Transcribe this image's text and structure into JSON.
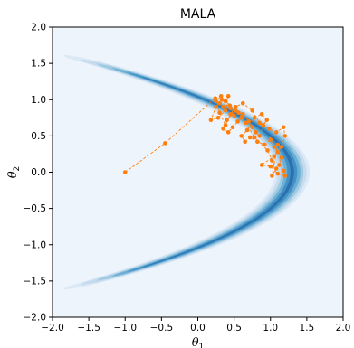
{
  "chart_data": {
    "type": "scatter",
    "title": "MALA",
    "xlabel": {
      "symbol": "θ",
      "sub": "1"
    },
    "ylabel": {
      "symbol": "θ",
      "sub": "2"
    },
    "xlim": [
      -2.0,
      2.0
    ],
    "ylim": [
      -2.0,
      2.0
    ],
    "xticks": [
      -2.0,
      -1.5,
      -1.0,
      -0.5,
      0.0,
      0.5,
      1.0,
      1.5,
      2.0
    ],
    "yticks": [
      -2.0,
      -1.5,
      -1.0,
      -0.5,
      0.0,
      0.5,
      1.0,
      1.5,
      2.0
    ],
    "xtick_labels": [
      "−2.0",
      "−1.5",
      "−1.0",
      "−0.5",
      "0.0",
      "0.5",
      "1.0",
      "1.5",
      "2.0"
    ],
    "ytick_labels": [
      "−2.0",
      "−1.5",
      "−1.0",
      "−0.5",
      "0.0",
      "0.5",
      "1.0",
      "1.5",
      "2.0"
    ],
    "grid": false,
    "background": "#eef4fb",
    "density_contour": {
      "shape": "banana",
      "curve": "theta1 = 1.3 - 1.2 * theta2^2",
      "colormap": "Blues",
      "levels": [
        0.05,
        0.15,
        0.3,
        0.5,
        0.7,
        0.9
      ],
      "colors": [
        "#dbe9f6",
        "#c6dbef",
        "#9ecae1",
        "#6baed6",
        "#4292c6",
        "#2c70b0"
      ]
    },
    "series": [
      {
        "marker_color": "#ff7f0e",
        "line_style": "dashed",
        "points": [
          [
            -1.0,
            0.0
          ],
          [
            -0.45,
            0.4
          ],
          [
            0.24,
            1.02
          ],
          [
            0.3,
            0.95
          ],
          [
            0.35,
            0.9
          ],
          [
            0.42,
            1.05
          ],
          [
            0.38,
            0.85
          ],
          [
            0.28,
            0.75
          ],
          [
            0.18,
            0.72
          ],
          [
            0.25,
            0.9
          ],
          [
            0.33,
            1.0
          ],
          [
            0.45,
            0.88
          ],
          [
            0.5,
            0.78
          ],
          [
            0.55,
            0.7
          ],
          [
            0.6,
            0.75
          ],
          [
            0.48,
            0.62
          ],
          [
            0.42,
            0.55
          ],
          [
            0.35,
            0.6
          ],
          [
            0.4,
            0.72
          ],
          [
            0.52,
            0.85
          ],
          [
            0.62,
            0.8
          ],
          [
            0.7,
            0.7
          ],
          [
            0.75,
            0.62
          ],
          [
            0.8,
            0.55
          ],
          [
            0.85,
            0.5
          ],
          [
            0.9,
            0.65
          ],
          [
            0.95,
            0.72
          ],
          [
            0.88,
            0.8
          ],
          [
            0.78,
            0.75
          ],
          [
            0.68,
            0.58
          ],
          [
            0.6,
            0.5
          ],
          [
            0.65,
            0.42
          ],
          [
            0.72,
            0.48
          ],
          [
            0.82,
            0.42
          ],
          [
            0.92,
            0.38
          ],
          [
            1.0,
            0.45
          ],
          [
            1.05,
            0.35
          ],
          [
            1.1,
            0.28
          ],
          [
            1.15,
            0.2
          ],
          [
            1.12,
            0.1
          ],
          [
            1.18,
            0.02
          ],
          [
            1.2,
            -0.05
          ],
          [
            1.1,
            -0.02
          ],
          [
            1.0,
            0.08
          ],
          [
            0.88,
            0.1
          ],
          [
            1.05,
            0.22
          ],
          [
            1.15,
            0.35
          ],
          [
            1.2,
            0.5
          ],
          [
            1.18,
            0.62
          ],
          [
            1.08,
            0.55
          ],
          [
            0.98,
            0.6
          ],
          [
            0.85,
            0.68
          ],
          [
            0.75,
            0.85
          ],
          [
            0.62,
            0.95
          ],
          [
            0.52,
            0.9
          ],
          [
            0.45,
            0.8
          ],
          [
            0.38,
            0.65
          ],
          [
            0.3,
            0.82
          ],
          [
            0.25,
            0.98
          ],
          [
            0.32,
            1.05
          ],
          [
            0.38,
            0.98
          ],
          [
            0.44,
            0.92
          ],
          [
            0.56,
            0.82
          ],
          [
            0.66,
            0.68
          ],
          [
            0.78,
            0.48
          ],
          [
            0.96,
            0.3
          ],
          [
            1.02,
            0.16
          ],
          [
            1.08,
            0.05
          ],
          [
            1.02,
            -0.05
          ],
          [
            1.1,
            0.38
          ]
        ]
      }
    ]
  }
}
